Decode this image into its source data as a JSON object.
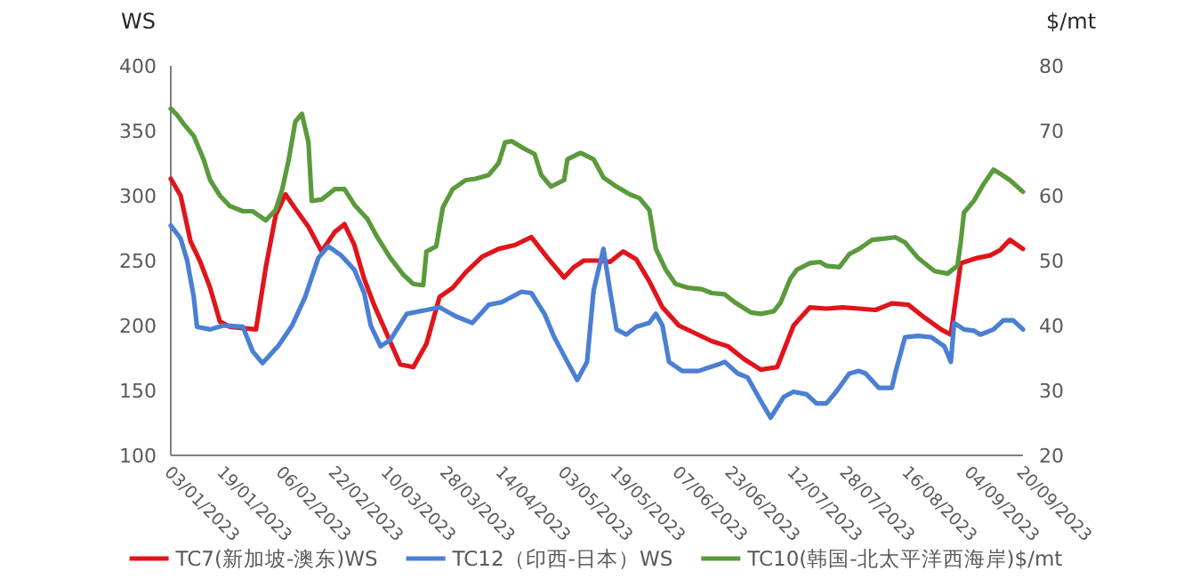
{
  "chart_data": {
    "type": "line",
    "ylabel": "WS",
    "y2label": "$/mt",
    "xlim": [
      "2023-01-03",
      "2023-09-20"
    ],
    "xticks": [
      {
        "value": "2023-01-03",
        "label": "03/01/2023"
      },
      {
        "value": "2023-01-19",
        "label": "19/01/2023"
      },
      {
        "value": "2023-02-06",
        "label": "06/02/2023"
      },
      {
        "value": "2023-02-22",
        "label": "22/02/2023"
      },
      {
        "value": "2023-03-10",
        "label": "10/03/2023"
      },
      {
        "value": "2023-03-28",
        "label": "28/03/2023"
      },
      {
        "value": "2023-04-14",
        "label": "14/04/2023"
      },
      {
        "value": "2023-05-03",
        "label": "03/05/2023"
      },
      {
        "value": "2023-05-19",
        "label": "19/05/2023"
      },
      {
        "value": "2023-06-07",
        "label": "07/06/2023"
      },
      {
        "value": "2023-06-23",
        "label": "23/06/2023"
      },
      {
        "value": "2023-07-12",
        "label": "12/07/2023"
      },
      {
        "value": "2023-07-28",
        "label": "28/07/2023"
      },
      {
        "value": "2023-08-16",
        "label": "16/08/2023"
      },
      {
        "value": "2023-09-04",
        "label": "04/09/2023"
      },
      {
        "value": "2023-09-20",
        "label": "20/09/2023"
      }
    ],
    "ylim": [
      100,
      400
    ],
    "yticks": [
      100,
      150,
      200,
      250,
      300,
      350,
      400
    ],
    "y2lim": [
      20,
      80
    ],
    "y2ticks": [
      20,
      30,
      40,
      50,
      60,
      70,
      80
    ],
    "grid": false,
    "legend": "bottom",
    "series": [
      {
        "name": "TC7(新加坡-澳东)WS",
        "color": "#e0151b",
        "x": [
          "2023-01-03",
          "2023-01-06",
          "2023-01-09",
          "2023-01-12",
          "2023-01-15",
          "2023-01-18",
          "2023-01-21",
          "2023-01-25",
          "2023-01-29",
          "2023-02-01",
          "2023-02-04",
          "2023-02-07",
          "2023-02-10",
          "2023-02-14",
          "2023-02-18",
          "2023-02-22",
          "2023-02-25",
          "2023-02-28",
          "2023-03-03",
          "2023-03-06",
          "2023-03-10",
          "2023-03-14",
          "2023-03-18",
          "2023-03-22",
          "2023-03-26",
          "2023-03-30",
          "2023-04-03",
          "2023-04-08",
          "2023-04-13",
          "2023-04-18",
          "2023-04-23",
          "2023-04-28",
          "2023-05-03",
          "2023-05-06",
          "2023-05-09",
          "2023-05-13",
          "2023-05-17",
          "2023-05-21",
          "2023-05-25",
          "2023-05-29",
          "2023-06-02",
          "2023-06-07",
          "2023-06-12",
          "2023-06-17",
          "2023-06-22",
          "2023-06-27",
          "2023-07-02",
          "2023-07-07",
          "2023-07-12",
          "2023-07-17",
          "2023-07-22",
          "2023-07-27",
          "2023-08-01",
          "2023-08-06",
          "2023-08-11",
          "2023-08-16",
          "2023-08-21",
          "2023-08-26",
          "2023-08-29",
          "2023-09-01",
          "2023-09-06",
          "2023-09-10",
          "2023-09-13",
          "2023-09-16",
          "2023-09-20"
        ],
        "values": [
          313,
          300,
          265,
          249,
          229,
          203,
          199,
          198,
          197,
          245,
          285,
          301,
          290,
          276,
          257,
          272,
          278,
          262,
          236,
          216,
          193,
          170,
          168,
          186,
          222,
          229,
          241,
          253,
          259,
          262,
          268,
          252,
          237,
          245,
          250,
          250,
          249,
          257,
          251,
          234,
          214,
          200,
          194,
          188,
          184,
          174,
          166,
          168,
          200,
          214,
          213,
          214,
          213,
          212,
          217,
          216,
          206,
          197,
          193,
          248,
          252,
          254,
          258,
          266,
          259
        ]
      },
      {
        "name": "TC12（印西-日本）WS",
        "color": "#4a7fd4",
        "x": [
          "2023-01-03",
          "2023-01-06",
          "2023-01-08",
          "2023-01-10",
          "2023-01-11",
          "2023-01-15",
          "2023-01-19",
          "2023-01-25",
          "2023-01-28",
          "2023-01-31",
          "2023-02-05",
          "2023-02-09",
          "2023-02-13",
          "2023-02-17",
          "2023-02-20",
          "2023-02-24",
          "2023-02-28",
          "2023-03-03",
          "2023-03-05",
          "2023-03-08",
          "2023-03-11",
          "2023-03-16",
          "2023-03-22",
          "2023-03-26",
          "2023-03-31",
          "2023-04-05",
          "2023-04-10",
          "2023-04-14",
          "2023-04-20",
          "2023-04-23",
          "2023-04-27",
          "2023-04-30",
          "2023-05-04",
          "2023-05-07",
          "2023-05-10",
          "2023-05-12",
          "2023-05-15",
          "2023-05-17",
          "2023-05-19",
          "2023-05-22",
          "2023-05-25",
          "2023-05-29",
          "2023-05-31",
          "2023-06-02",
          "2023-06-04",
          "2023-06-08",
          "2023-06-13",
          "2023-06-19",
          "2023-06-21",
          "2023-06-25",
          "2023-06-28",
          "2023-07-02",
          "2023-07-05",
          "2023-07-09",
          "2023-07-12",
          "2023-07-16",
          "2023-07-19",
          "2023-07-22",
          "2023-07-25",
          "2023-07-29",
          "2023-08-01",
          "2023-08-03",
          "2023-08-07",
          "2023-08-11",
          "2023-08-12",
          "2023-08-15",
          "2023-08-19",
          "2023-08-23",
          "2023-08-27",
          "2023-08-29",
          "2023-08-30",
          "2023-09-02",
          "2023-09-05",
          "2023-09-07",
          "2023-09-11",
          "2023-09-14",
          "2023-09-17",
          "2023-09-20"
        ],
        "values": [
          277,
          267,
          250,
          222,
          199,
          197,
          200,
          199,
          180,
          171,
          185,
          200,
          222,
          252,
          261,
          254,
          243,
          225,
          200,
          184,
          189,
          209,
          212,
          214,
          207,
          202,
          216,
          218,
          226,
          225,
          209,
          191,
          172,
          158,
          172,
          227,
          259,
          227,
          197,
          193,
          199,
          202,
          209,
          200,
          172,
          165,
          165,
          170,
          172,
          163,
          160,
          142,
          129,
          145,
          149,
          147,
          140,
          140,
          149,
          163,
          165,
          163,
          152,
          152,
          163,
          191,
          192,
          191,
          184,
          172,
          202,
          197,
          196,
          193,
          197,
          204,
          204,
          197
        ]
      },
      {
        "name": "TC10(韩国-北太平洋西海岸)$/mt",
        "color": "#5b9a3c",
        "axis": "y2",
        "x": [
          "2023-01-03",
          "2023-01-05",
          "2023-01-07",
          "2023-01-10",
          "2023-01-13",
          "2023-01-15",
          "2023-01-18",
          "2023-01-21",
          "2023-01-25",
          "2023-01-28",
          "2023-02-01",
          "2023-02-04",
          "2023-02-06",
          "2023-02-08",
          "2023-02-10",
          "2023-02-12",
          "2023-02-14",
          "2023-02-15",
          "2023-02-18",
          "2023-02-22",
          "2023-02-25",
          "2023-02-28",
          "2023-03-04",
          "2023-03-07",
          "2023-03-11",
          "2023-03-15",
          "2023-03-18",
          "2023-03-21",
          "2023-03-22",
          "2023-03-25",
          "2023-03-27",
          "2023-03-30",
          "2023-04-03",
          "2023-04-06",
          "2023-04-10",
          "2023-04-13",
          "2023-04-15",
          "2023-04-17",
          "2023-04-21",
          "2023-04-24",
          "2023-04-26",
          "2023-04-29",
          "2023-05-03",
          "2023-05-04",
          "2023-05-08",
          "2023-05-12",
          "2023-05-15",
          "2023-05-19",
          "2023-05-23",
          "2023-05-26",
          "2023-05-29",
          "2023-05-31",
          "2023-06-03",
          "2023-06-06",
          "2023-06-10",
          "2023-06-14",
          "2023-06-17",
          "2023-06-21",
          "2023-06-24",
          "2023-06-29",
          "2023-07-02",
          "2023-07-06",
          "2023-07-08",
          "2023-07-11",
          "2023-07-13",
          "2023-07-17",
          "2023-07-20",
          "2023-07-22",
          "2023-07-26",
          "2023-07-29",
          "2023-08-01",
          "2023-08-05",
          "2023-08-09",
          "2023-08-12",
          "2023-08-15",
          "2023-08-19",
          "2023-08-21",
          "2023-08-24",
          "2023-08-28",
          "2023-08-31",
          "2023-09-01",
          "2023-09-02",
          "2023-09-05",
          "2023-09-08",
          "2023-09-11",
          "2023-09-13",
          "2023-09-16",
          "2023-09-20"
        ],
        "values": [
          73.4,
          72.4,
          71,
          69.2,
          65.6,
          62.4,
          60,
          58.4,
          57.6,
          57.6,
          56.2,
          57.8,
          61,
          65.6,
          71.4,
          72.6,
          68.2,
          59.2,
          59.4,
          61,
          61,
          58.6,
          56.4,
          53.6,
          50.4,
          47.8,
          46.4,
          46.2,
          51.4,
          52.2,
          58.2,
          61,
          62.4,
          62.6,
          63.2,
          65,
          68.2,
          68.4,
          67.2,
          66.4,
          63.2,
          61.4,
          62.4,
          65.6,
          66.6,
          65.6,
          62.8,
          61.4,
          60.2,
          59.6,
          57.8,
          51.8,
          48.6,
          46.4,
          45.8,
          45.6,
          45,
          44.8,
          43.6,
          42,
          41.8,
          42.2,
          43.5,
          47.2,
          48.6,
          49.6,
          49.8,
          49.2,
          49,
          51,
          51.8,
          53.2,
          53.4,
          53.6,
          52.8,
          50.4,
          49.6,
          48.4,
          48,
          49.2,
          52.8,
          57.4,
          59.2,
          61.8,
          64,
          63.4,
          62.4,
          60.6
        ]
      }
    ]
  }
}
